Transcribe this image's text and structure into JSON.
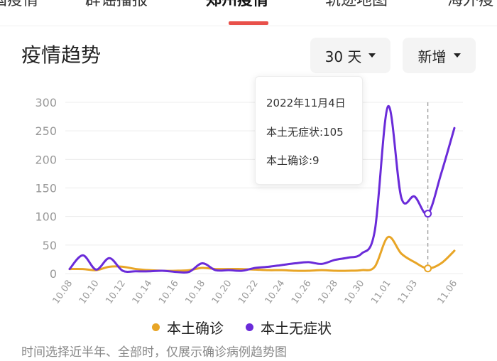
{
  "tabs": [
    {
      "label": "国疫情"
    },
    {
      "label": "辟谣播报"
    },
    {
      "label": "郑州疫情"
    },
    {
      "label": "轨迹地图"
    },
    {
      "label": "海外疫"
    }
  ],
  "section_title": "疫情趋势",
  "filters": {
    "days_label": "30 天",
    "type_label": "新增"
  },
  "tooltip": {
    "date": "2022年11月4日",
    "line1": "本土无症状:105",
    "line2": "本土确诊:9"
  },
  "legend": [
    {
      "label": "本土确诊",
      "color": "#e8a526"
    },
    {
      "label": "本土无症状",
      "color": "#6a2bd9"
    }
  ],
  "footnote": "时间选择近半年、全部时，仅展示确诊病例趋势图",
  "icons": {
    "dropdown": "caret-down-icon"
  },
  "chart_data": {
    "type": "line",
    "x": [
      "10.08",
      "10.09",
      "10.10",
      "10.11",
      "10.12",
      "10.13",
      "10.14",
      "10.15",
      "10.16",
      "10.17",
      "10.18",
      "10.19",
      "10.20",
      "10.21",
      "10.22",
      "10.23",
      "10.24",
      "10.25",
      "10.26",
      "10.27",
      "10.28",
      "10.29",
      "10.30",
      "10.31",
      "11.01",
      "11.02",
      "11.03",
      "11.04",
      "11.05",
      "11.06"
    ],
    "tick_labels": [
      "10.08",
      "10.10",
      "10.12",
      "10.14",
      "10.16",
      "10.18",
      "10.20",
      "10.22",
      "10.24",
      "10.26",
      "10.28",
      "10.30",
      "11.01",
      "11.03",
      "11.06"
    ],
    "yticks": [
      0,
      50,
      100,
      150,
      200,
      250,
      300
    ],
    "ylim": [
      0,
      300
    ],
    "grid": true,
    "legend_position": "bottom",
    "highlight_index": 27,
    "series": [
      {
        "name": "本土确诊",
        "color": "#e8a526",
        "values": [
          8,
          8,
          6,
          12,
          12,
          8,
          6,
          5,
          5,
          6,
          10,
          8,
          8,
          8,
          7,
          6,
          6,
          5,
          5,
          6,
          5,
          5,
          6,
          12,
          64,
          35,
          20,
          9,
          18,
          40
        ]
      },
      {
        "name": "本土无症状",
        "color": "#6a2bd9",
        "values": [
          8,
          32,
          7,
          27,
          5,
          4,
          4,
          5,
          3,
          3,
          18,
          6,
          6,
          5,
          10,
          12,
          15,
          18,
          20,
          17,
          24,
          28,
          35,
          75,
          293,
          133,
          135,
          105,
          175,
          255
        ]
      }
    ]
  }
}
